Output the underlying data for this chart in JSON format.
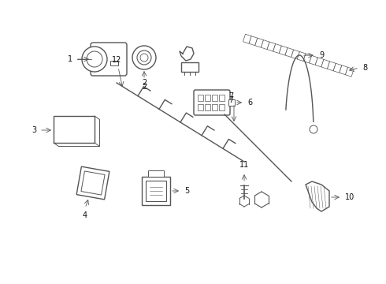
{
  "background_color": "#ffffff",
  "line_color": "#555555",
  "text_color": "#111111",
  "fig_width": 4.9,
  "fig_height": 3.6,
  "dpi": 100
}
